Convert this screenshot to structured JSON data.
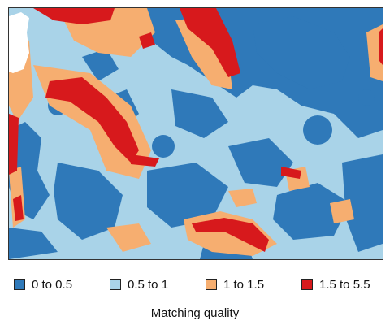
{
  "legend": {
    "title": "Matching quality",
    "items": [
      {
        "label": "0 to 0.5",
        "color": "#2f79b9",
        "icon": "dark-blue-swatch"
      },
      {
        "label": "0.5 to 1",
        "color": "#a9d3e8",
        "icon": "light-blue-swatch"
      },
      {
        "label": "1 to 1.5",
        "color": "#f6ae70",
        "icon": "orange-swatch"
      },
      {
        "label": "1.5 to 5.5",
        "color": "#d7191c",
        "icon": "red-swatch"
      }
    ]
  },
  "map": {
    "land_color": "#ffffff",
    "border_color": "#333333"
  }
}
